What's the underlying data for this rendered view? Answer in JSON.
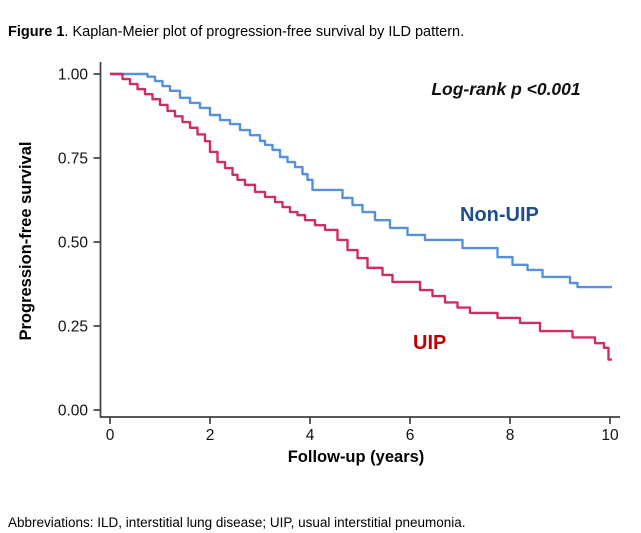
{
  "figure": {
    "caption_bold": "Figure 1",
    "caption_rest": ". Kaplan-Meier plot of progression-free survival by ILD pattern."
  },
  "footnote": "Abbreviations: ILD, interstitial lung disease; UIP, usual interstitial pneumonia.",
  "chart_data": {
    "type": "line",
    "subtype": "kaplan-meier-step",
    "title": "",
    "xlabel": "Follow-up (years)",
    "ylabel": "Progression-free survival",
    "annotation": "Log-rank p <0.001",
    "xlim": [
      0,
      10
    ],
    "ylim": [
      0,
      1
    ],
    "grid": false,
    "legend_position": "curve-labels-inline",
    "xtick_values": [
      0,
      2,
      4,
      6,
      8,
      10
    ],
    "xtick_labels": [
      "0",
      "2",
      "4",
      "6",
      "8",
      "10"
    ],
    "ytick_values": [
      0,
      0.25,
      0.5,
      0.75,
      1.0
    ],
    "ytick_labels": [
      "0.00",
      "0.25",
      "0.50",
      "0.75",
      "1.00"
    ],
    "axis_color": "#3f3f3f",
    "series": [
      {
        "name": "Non-UIP",
        "color": "#5591DC",
        "label_color": "#1F4E8C",
        "points": [
          [
            0,
            1.0
          ],
          [
            0.75,
            0.992
          ],
          [
            0.9,
            0.979
          ],
          [
            1.05,
            0.964
          ],
          [
            1.2,
            0.95
          ],
          [
            1.4,
            0.929
          ],
          [
            1.6,
            0.914
          ],
          [
            1.8,
            0.899
          ],
          [
            2.0,
            0.878
          ],
          [
            2.2,
            0.863
          ],
          [
            2.4,
            0.851
          ],
          [
            2.6,
            0.833
          ],
          [
            2.8,
            0.818
          ],
          [
            3.0,
            0.801
          ],
          [
            3.1,
            0.789
          ],
          [
            3.25,
            0.774
          ],
          [
            3.4,
            0.753
          ],
          [
            3.55,
            0.738
          ],
          [
            3.7,
            0.723
          ],
          [
            3.85,
            0.702
          ],
          [
            3.95,
            0.685
          ],
          [
            4.05,
            0.655
          ],
          [
            4.65,
            0.631
          ],
          [
            4.85,
            0.61
          ],
          [
            5.05,
            0.589
          ],
          [
            5.3,
            0.565
          ],
          [
            5.6,
            0.542
          ],
          [
            5.95,
            0.521
          ],
          [
            6.3,
            0.506
          ],
          [
            7.05,
            0.482
          ],
          [
            7.75,
            0.455
          ],
          [
            8.05,
            0.432
          ],
          [
            8.35,
            0.417
          ],
          [
            8.65,
            0.396
          ],
          [
            9.2,
            0.378
          ],
          [
            9.35,
            0.366
          ],
          [
            10,
            0.366
          ]
        ]
      },
      {
        "name": "UIP",
        "color": "#CF2F60",
        "label_color": "#C00000",
        "points": [
          [
            0,
            1.0
          ],
          [
            0.25,
            0.985
          ],
          [
            0.4,
            0.97
          ],
          [
            0.55,
            0.955
          ],
          [
            0.7,
            0.94
          ],
          [
            0.85,
            0.925
          ],
          [
            1.0,
            0.908
          ],
          [
            1.15,
            0.89
          ],
          [
            1.3,
            0.874
          ],
          [
            1.45,
            0.857
          ],
          [
            1.6,
            0.84
          ],
          [
            1.75,
            0.82
          ],
          [
            1.9,
            0.8
          ],
          [
            2.0,
            0.768
          ],
          [
            2.15,
            0.738
          ],
          [
            2.3,
            0.72
          ],
          [
            2.45,
            0.7
          ],
          [
            2.55,
            0.685
          ],
          [
            2.7,
            0.67
          ],
          [
            2.9,
            0.649
          ],
          [
            3.1,
            0.634
          ],
          [
            3.3,
            0.619
          ],
          [
            3.45,
            0.604
          ],
          [
            3.6,
            0.589
          ],
          [
            3.75,
            0.58
          ],
          [
            3.9,
            0.565
          ],
          [
            4.1,
            0.55
          ],
          [
            4.3,
            0.536
          ],
          [
            4.55,
            0.506
          ],
          [
            4.75,
            0.476
          ],
          [
            4.95,
            0.452
          ],
          [
            5.15,
            0.423
          ],
          [
            5.45,
            0.402
          ],
          [
            5.65,
            0.381
          ],
          [
            6.2,
            0.357
          ],
          [
            6.45,
            0.339
          ],
          [
            6.7,
            0.32
          ],
          [
            6.95,
            0.305
          ],
          [
            7.2,
            0.289
          ],
          [
            7.75,
            0.274
          ],
          [
            8.2,
            0.259
          ],
          [
            8.6,
            0.235
          ],
          [
            9.25,
            0.216
          ],
          [
            9.7,
            0.199
          ],
          [
            9.88,
            0.185
          ],
          [
            9.97,
            0.15
          ],
          [
            10,
            0.15
          ]
        ]
      }
    ]
  }
}
